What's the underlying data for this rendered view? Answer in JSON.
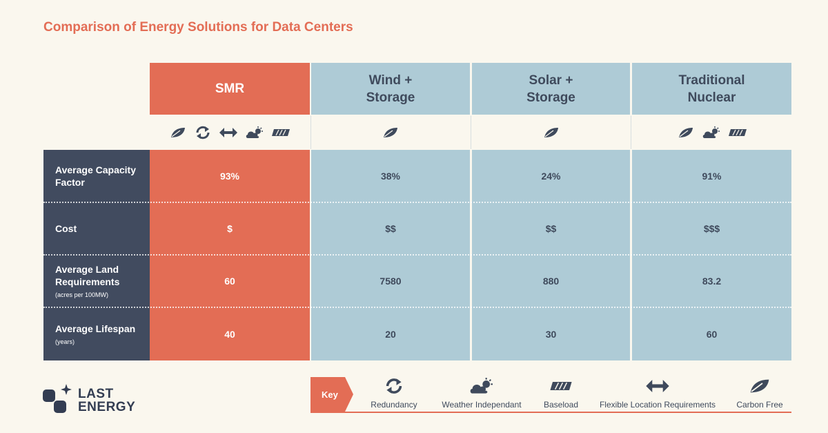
{
  "title": "Comparison of Energy Solutions for Data Centers",
  "colors": {
    "accent": "#e36d55",
    "light_blue": "#aecbd6",
    "navy": "#414b5f",
    "background": "#faf7ee",
    "text": "#3f4a5c"
  },
  "columns": [
    {
      "name": "SMR",
      "icons": [
        "leaf-icon",
        "redundancy-icon",
        "flexible-location-icon",
        "weather-independent-icon",
        "baseload-icon"
      ]
    },
    {
      "name": "Wind + Storage",
      "icons": [
        "leaf-icon"
      ]
    },
    {
      "name": "Solar + Storage",
      "icons": [
        "leaf-icon"
      ]
    },
    {
      "name": "Traditional Nuclear",
      "icons": [
        "leaf-icon",
        "weather-independent-icon",
        "baseload-icon"
      ]
    }
  ],
  "rows": [
    {
      "label": "Average Capacity Factor",
      "sublabel": "",
      "values": [
        "93%",
        "38%",
        "24%",
        "91%"
      ]
    },
    {
      "label": "Cost",
      "sublabel": "",
      "values": [
        "$",
        "$$",
        "$$",
        "$$$"
      ]
    },
    {
      "label": "Average Land Requirements",
      "sublabel": "(acres per 100MW)",
      "values": [
        "60",
        "7580",
        "880",
        "83.2"
      ]
    },
    {
      "label": "Average Lifespan",
      "sublabel": "(years)",
      "values": [
        "40",
        "20",
        "30",
        "60"
      ]
    }
  ],
  "logo": {
    "line1": "LAST",
    "line2": "ENERGY"
  },
  "key": {
    "label": "Key",
    "items": [
      {
        "icon": "redundancy-icon",
        "label": "Redundancy"
      },
      {
        "icon": "weather-independent-icon",
        "label": "Weather Independant"
      },
      {
        "icon": "baseload-icon",
        "label": "Baseload"
      },
      {
        "icon": "flexible-location-icon",
        "label": "Flexible Location Requirements"
      },
      {
        "icon": "leaf-icon",
        "label": "Carbon Free"
      }
    ]
  }
}
